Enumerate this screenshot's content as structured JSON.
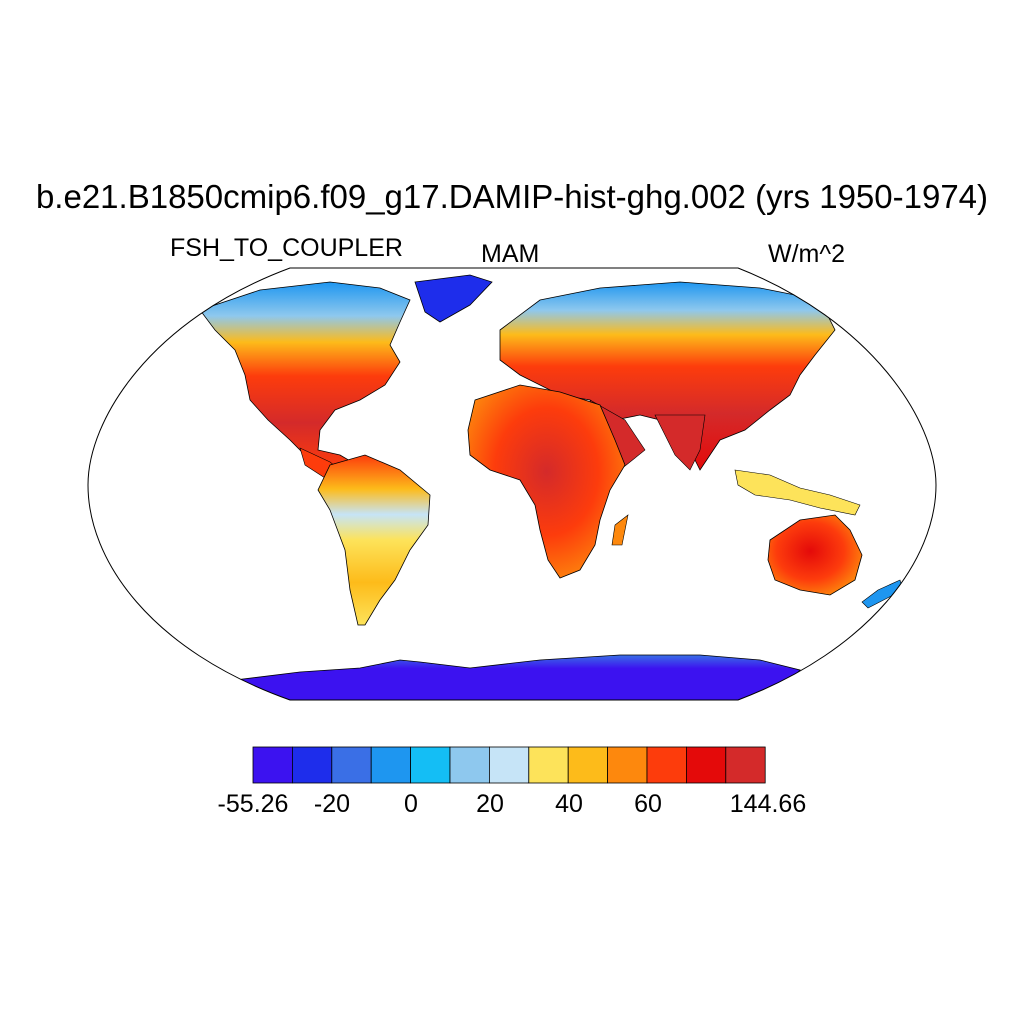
{
  "title": "b.e21.B1850cmip6.f09_g17.DAMIP-hist-ghg.002 (yrs 1950-1974)",
  "subtitle_left": "FSH_TO_COUPLER",
  "subtitle_center": "MAM",
  "subtitle_right": "W/m^2",
  "colorbar": {
    "colors": [
      "#3c12f0",
      "#1e2deb",
      "#3a6fe6",
      "#1e96f0",
      "#14bef5",
      "#8ec8ee",
      "#c6e4f7",
      "#fde35a",
      "#fdbb1a",
      "#fd880d",
      "#fd3c0c",
      "#e40a0a",
      "#d42a2a"
    ],
    "labels": [
      "-55.26",
      "-20",
      "0",
      "20",
      "40",
      "60",
      "144.66"
    ]
  },
  "map": {
    "projection": "Robinson",
    "ocean_color": "#ffffff"
  }
}
